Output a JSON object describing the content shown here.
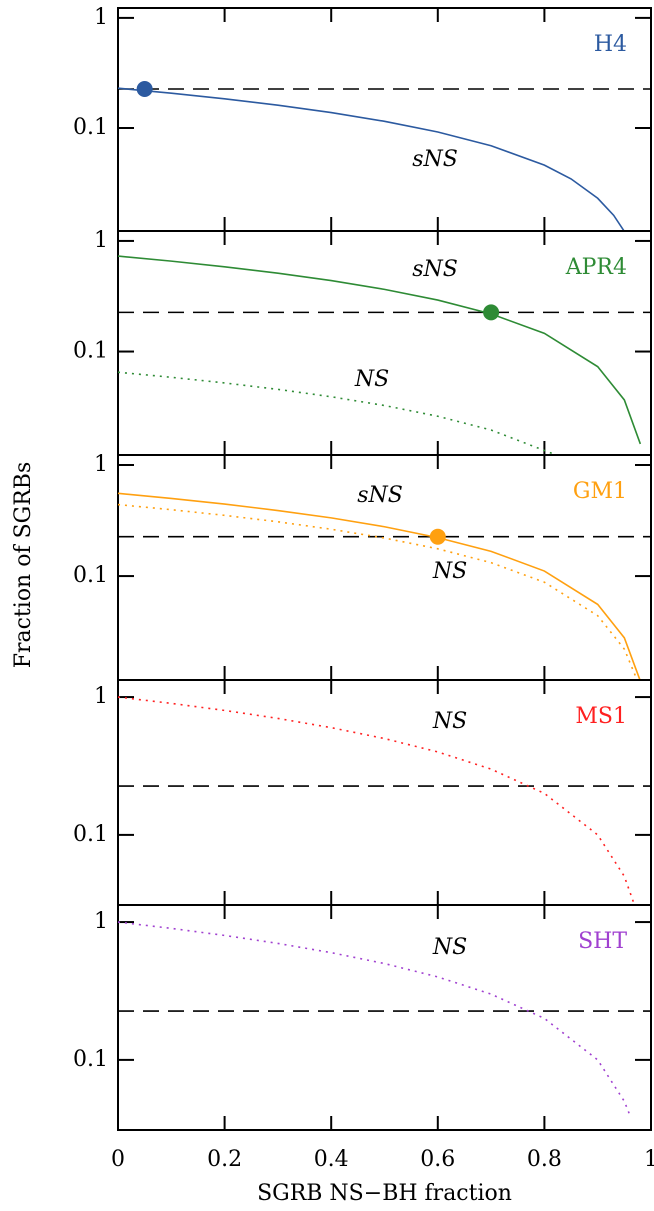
{
  "chart_data": [
    {
      "type": "line",
      "label": "H4",
      "label_color": "#2c5aa0",
      "xlim": [
        0,
        1
      ],
      "ylim": [
        0.0116,
        1.23
      ],
      "yscale": "log",
      "yticks": [
        0.1,
        1
      ],
      "hline": 0.226,
      "series": [
        {
          "name": "sNS",
          "color": "#2c5aa0",
          "linestyle": "solid",
          "x": [
            0,
            0.1,
            0.2,
            0.3,
            0.4,
            0.5,
            0.6,
            0.7,
            0.8,
            0.85,
            0.9,
            0.93,
            0.95
          ],
          "values": [
            0.23,
            0.207,
            0.184,
            0.161,
            0.138,
            0.115,
            0.092,
            0.069,
            0.046,
            0.0345,
            0.023,
            0.0161,
            0.0115
          ]
        }
      ],
      "marker": {
        "x": 0.05,
        "y": 0.226,
        "color": "#2c5aa0"
      }
    },
    {
      "type": "line",
      "label": "APR4",
      "label_color": "#2e8b35",
      "xlim": [
        0,
        1
      ],
      "ylim": [
        0.0116,
        1.23
      ],
      "yscale": "log",
      "yticks": [
        0.1,
        1
      ],
      "hline": 0.226,
      "series": [
        {
          "name": "sNS",
          "color": "#2e8b35",
          "linestyle": "solid",
          "x": [
            0,
            0.1,
            0.2,
            0.3,
            0.4,
            0.5,
            0.6,
            0.7,
            0.8,
            0.9,
            0.95,
            0.98
          ],
          "values": [
            0.73,
            0.657,
            0.584,
            0.511,
            0.438,
            0.365,
            0.292,
            0.219,
            0.146,
            0.073,
            0.0365,
            0.0146
          ]
        },
        {
          "name": "NS",
          "color": "#2e8b35",
          "linestyle": "dotted",
          "x": [
            0,
            0.1,
            0.2,
            0.3,
            0.4,
            0.5,
            0.6,
            0.7,
            0.82
          ],
          "values": [
            0.065,
            0.0585,
            0.052,
            0.0455,
            0.039,
            0.0325,
            0.026,
            0.0195,
            0.0117
          ]
        }
      ],
      "marker": {
        "x": 0.7,
        "y": 0.226,
        "color": "#2e8b35"
      }
    },
    {
      "type": "line",
      "label": "GM1",
      "label_color": "#ffa010",
      "ylabel": "Fraction of SGRBs",
      "xlim": [
        0,
        1
      ],
      "ylim": [
        0.0116,
        1.23
      ],
      "yscale": "log",
      "yticks": [
        0.1,
        1
      ],
      "hline": 0.226,
      "series": [
        {
          "name": "sNS",
          "color": "#ffa010",
          "linestyle": "solid",
          "x": [
            0,
            0.1,
            0.2,
            0.3,
            0.4,
            0.5,
            0.6,
            0.7,
            0.8,
            0.9,
            0.95,
            0.979
          ],
          "values": [
            0.556,
            0.5,
            0.445,
            0.389,
            0.334,
            0.278,
            0.222,
            0.167,
            0.111,
            0.0556,
            0.0278,
            0.0117
          ]
        },
        {
          "name": "NS",
          "color": "#ffa010",
          "linestyle": "dotted",
          "x": [
            0,
            0.1,
            0.2,
            0.3,
            0.4,
            0.5,
            0.6,
            0.7,
            0.8,
            0.9,
            0.95,
            0.973
          ],
          "values": [
            0.44,
            0.396,
            0.352,
            0.308,
            0.264,
            0.22,
            0.176,
            0.132,
            0.088,
            0.044,
            0.022,
            0.0119
          ]
        }
      ],
      "marker": {
        "x": 0.6,
        "y": 0.226,
        "color": "#ffa010"
      }
    },
    {
      "type": "line",
      "label": "MS1",
      "label_color": "#ff2020",
      "xlim": [
        0,
        1
      ],
      "ylim": [
        0.031,
        1.33
      ],
      "yscale": "log",
      "yticks": [
        0.1,
        1
      ],
      "hline": 0.226,
      "series": [
        {
          "name": "NS",
          "color": "#ff2020",
          "linestyle": "dotted",
          "x": [
            0,
            0.1,
            0.2,
            0.3,
            0.4,
            0.5,
            0.6,
            0.7,
            0.8,
            0.9,
            0.95,
            0.969
          ],
          "values": [
            1,
            0.9,
            0.8,
            0.7,
            0.6,
            0.5,
            0.4,
            0.3,
            0.2,
            0.1,
            0.05,
            0.031
          ]
        }
      ]
    },
    {
      "type": "line",
      "label": "SHT",
      "label_color": "#a040d0",
      "xlabel": "SGRB NS−BH fraction",
      "xlim": [
        0,
        1
      ],
      "xticks": [
        0,
        0.2,
        0.4,
        0.6,
        0.8,
        1
      ],
      "ylim": [
        0.031,
        1.33
      ],
      "yscale": "log",
      "yticks": [
        0.1,
        1
      ],
      "hline": 0.226,
      "series": [
        {
          "name": "NS",
          "color": "#a040d0",
          "linestyle": "dotted",
          "x": [
            0,
            0.1,
            0.2,
            0.3,
            0.4,
            0.5,
            0.6,
            0.7,
            0.8,
            0.9,
            0.95,
            0.96
          ],
          "values": [
            1,
            0.9,
            0.8,
            0.7,
            0.6,
            0.5,
            0.4,
            0.3,
            0.2,
            0.1,
            0.05,
            0.04
          ]
        }
      ]
    }
  ]
}
